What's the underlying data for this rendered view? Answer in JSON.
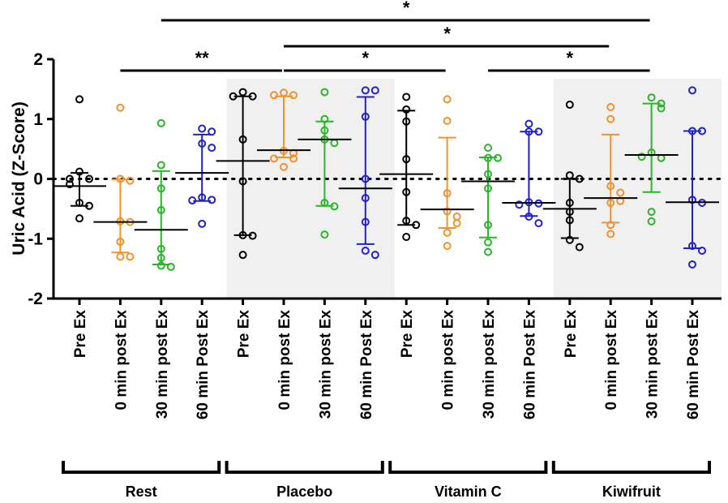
{
  "chart_data": {
    "type": "scatter",
    "subtype": "dot plot with median and interquartile range",
    "title": "",
    "xlabel": "",
    "ylabel": "Uric Acid (Z-Score)",
    "ylim": [
      -2,
      2
    ],
    "yticks": [
      "-2",
      "-1",
      "0",
      "1",
      "2"
    ],
    "reference_line": {
      "y": 0,
      "style": "dotted"
    },
    "colors": {
      "Pre Ex": "#000000",
      "0 min post Ex": "#f0922e",
      "30 min post Ex": "#2bb52b",
      "60 min Post Ex": "#2020d0",
      "summary_line": "#000000",
      "shade": "#f0f0f0"
    },
    "groups": [
      {
        "name": "Rest",
        "shaded": false,
        "series": [
          {
            "label": "Pre Ex",
            "color_key": "Pre Ex",
            "points": [
              1.33,
              0.12,
              0.0,
              0.0,
              -0.09,
              -0.4,
              -0.45,
              -0.66
            ],
            "median": -0.12,
            "q1": -0.45,
            "q3": 0.1
          },
          {
            "label": "0 min post Ex",
            "color_key": "0 min post Ex",
            "points": [
              1.19,
              0.0,
              -0.03,
              -0.71,
              -0.72,
              -1.05,
              -1.3,
              -1.3
            ],
            "median": -0.72,
            "q1": -1.23,
            "q3": -0.01
          },
          {
            "label": "30 min post Ex",
            "color_key": "30 min post Ex",
            "points": [
              0.93,
              0.23,
              -0.16,
              -0.52,
              -1.17,
              -1.32,
              -1.45,
              -1.47
            ],
            "median": -0.85,
            "q1": -1.43,
            "q3": 0.13
          },
          {
            "label": "60 min Post Ex",
            "color_key": "60 min Post Ex",
            "points": [
              0.84,
              0.79,
              0.59,
              0.52,
              -0.31,
              -0.35,
              -0.36,
              -0.75
            ],
            "median": 0.1,
            "q1": -0.37,
            "q3": 0.74
          }
        ]
      },
      {
        "name": "Placebo",
        "shaded": true,
        "series": [
          {
            "label": "Pre Ex",
            "color_key": "Pre Ex",
            "points": [
              1.45,
              1.38,
              1.38,
              0.66,
              -0.04,
              -0.94,
              -0.95,
              -1.27
            ],
            "median": 0.3,
            "q1": -0.94,
            "q3": 1.38
          },
          {
            "label": "0 min post Ex",
            "color_key": "0 min post Ex",
            "points": [
              1.44,
              1.4,
              1.4,
              0.47,
              0.43,
              0.34,
              0.34,
              0.2
            ],
            "median": 0.48,
            "q1": 0.36,
            "q3": 1.38
          },
          {
            "label": "30 min post Ex",
            "color_key": "30 min post Ex",
            "points": [
              1.45,
              1.0,
              0.81,
              0.66,
              0.6,
              -0.4,
              -0.46,
              -0.93
            ],
            "median": 0.66,
            "q1": -0.45,
            "q3": 0.96
          },
          {
            "label": "60 min Post Ex",
            "color_key": "60 min Post Ex",
            "points": [
              1.48,
              1.48,
              1.04,
              0.0,
              -0.32,
              -0.72,
              -1.2,
              -1.27
            ],
            "median": -0.16,
            "q1": -1.09,
            "q3": 1.37
          }
        ]
      },
      {
        "name": "Vitamin C",
        "shaded": false,
        "series": [
          {
            "label": "Pre Ex",
            "color_key": "Pre Ex",
            "points": [
              1.37,
              1.16,
              0.96,
              0.33,
              -0.22,
              -0.7,
              -0.77,
              -0.97
            ],
            "median": 0.08,
            "q1": -0.77,
            "q3": 1.14
          },
          {
            "label": "0 min post Ex",
            "color_key": "0 min post Ex",
            "points": [
              1.33,
              0.97,
              -0.24,
              -0.54,
              -0.63,
              -0.74,
              -0.9,
              -1.12
            ],
            "median": -0.51,
            "q1": -0.82,
            "q3": 0.69
          },
          {
            "label": "30 min post Ex",
            "color_key": "30 min post Ex",
            "points": [
              0.52,
              0.35,
              0.35,
              0.08,
              -0.16,
              -0.77,
              -1.06,
              -1.22
            ],
            "median": -0.04,
            "q1": -0.98,
            "q3": 0.36
          },
          {
            "label": "60 min Post Ex",
            "color_key": "60 min Post Ex",
            "points": [
              0.92,
              0.79,
              0.79,
              -0.39,
              -0.41,
              -0.43,
              -0.63,
              -0.74
            ],
            "median": -0.4,
            "q1": -0.62,
            "q3": 0.79
          }
        ]
      },
      {
        "name": "Kiwifruit",
        "shaded": true,
        "series": [
          {
            "label": "Pre Ex",
            "color_key": "Pre Ex",
            "points": [
              1.24,
              0.06,
              0.0,
              -0.4,
              -0.55,
              -0.69,
              -1.02,
              -1.14
            ],
            "median": -0.5,
            "q1": -0.99,
            "q3": 0.0
          },
          {
            "label": "0 min post Ex",
            "color_key": "0 min post Ex",
            "points": [
              1.2,
              1.0,
              -0.12,
              -0.23,
              -0.4,
              -0.37,
              -0.77,
              -0.92
            ],
            "median": -0.32,
            "q1": -0.73,
            "q3": 0.74
          },
          {
            "label": "30 min post Ex",
            "color_key": "30 min post Ex",
            "points": [
              1.36,
              1.26,
              1.18,
              0.44,
              0.35,
              0.37,
              -0.55,
              -0.71
            ],
            "median": 0.4,
            "q1": -0.22,
            "q3": 1.26
          },
          {
            "label": "60 min Post Ex",
            "color_key": "60 min Post Ex",
            "points": [
              1.48,
              0.8,
              0.8,
              -0.35,
              -0.4,
              -1.12,
              -1.2,
              -1.43
            ],
            "median": -0.39,
            "q1": -1.16,
            "q3": 0.8
          }
        ]
      }
    ],
    "significance": [
      {
        "from": "Rest / 0 min post Ex",
        "to": "Placebo / 0 min post Ex",
        "label": "**",
        "level": 1
      },
      {
        "from": "Placebo / 0 min post Ex",
        "to": "Vitamin C / 0 min post Ex",
        "label": "*",
        "level": 1
      },
      {
        "from": "Vitamin C / 30 min post Ex",
        "to": "Kiwifruit / 30 min post Ex",
        "label": "*",
        "level": 1
      },
      {
        "from": "Placebo / 0 min post Ex",
        "to": "Kiwifruit / 0 min post Ex",
        "label": "*",
        "level": 2
      },
      {
        "from": "Rest / 30 min post Ex",
        "to": "Kiwifruit / 30 min post Ex",
        "label": "*",
        "level": 3
      }
    ],
    "legend": "none"
  }
}
